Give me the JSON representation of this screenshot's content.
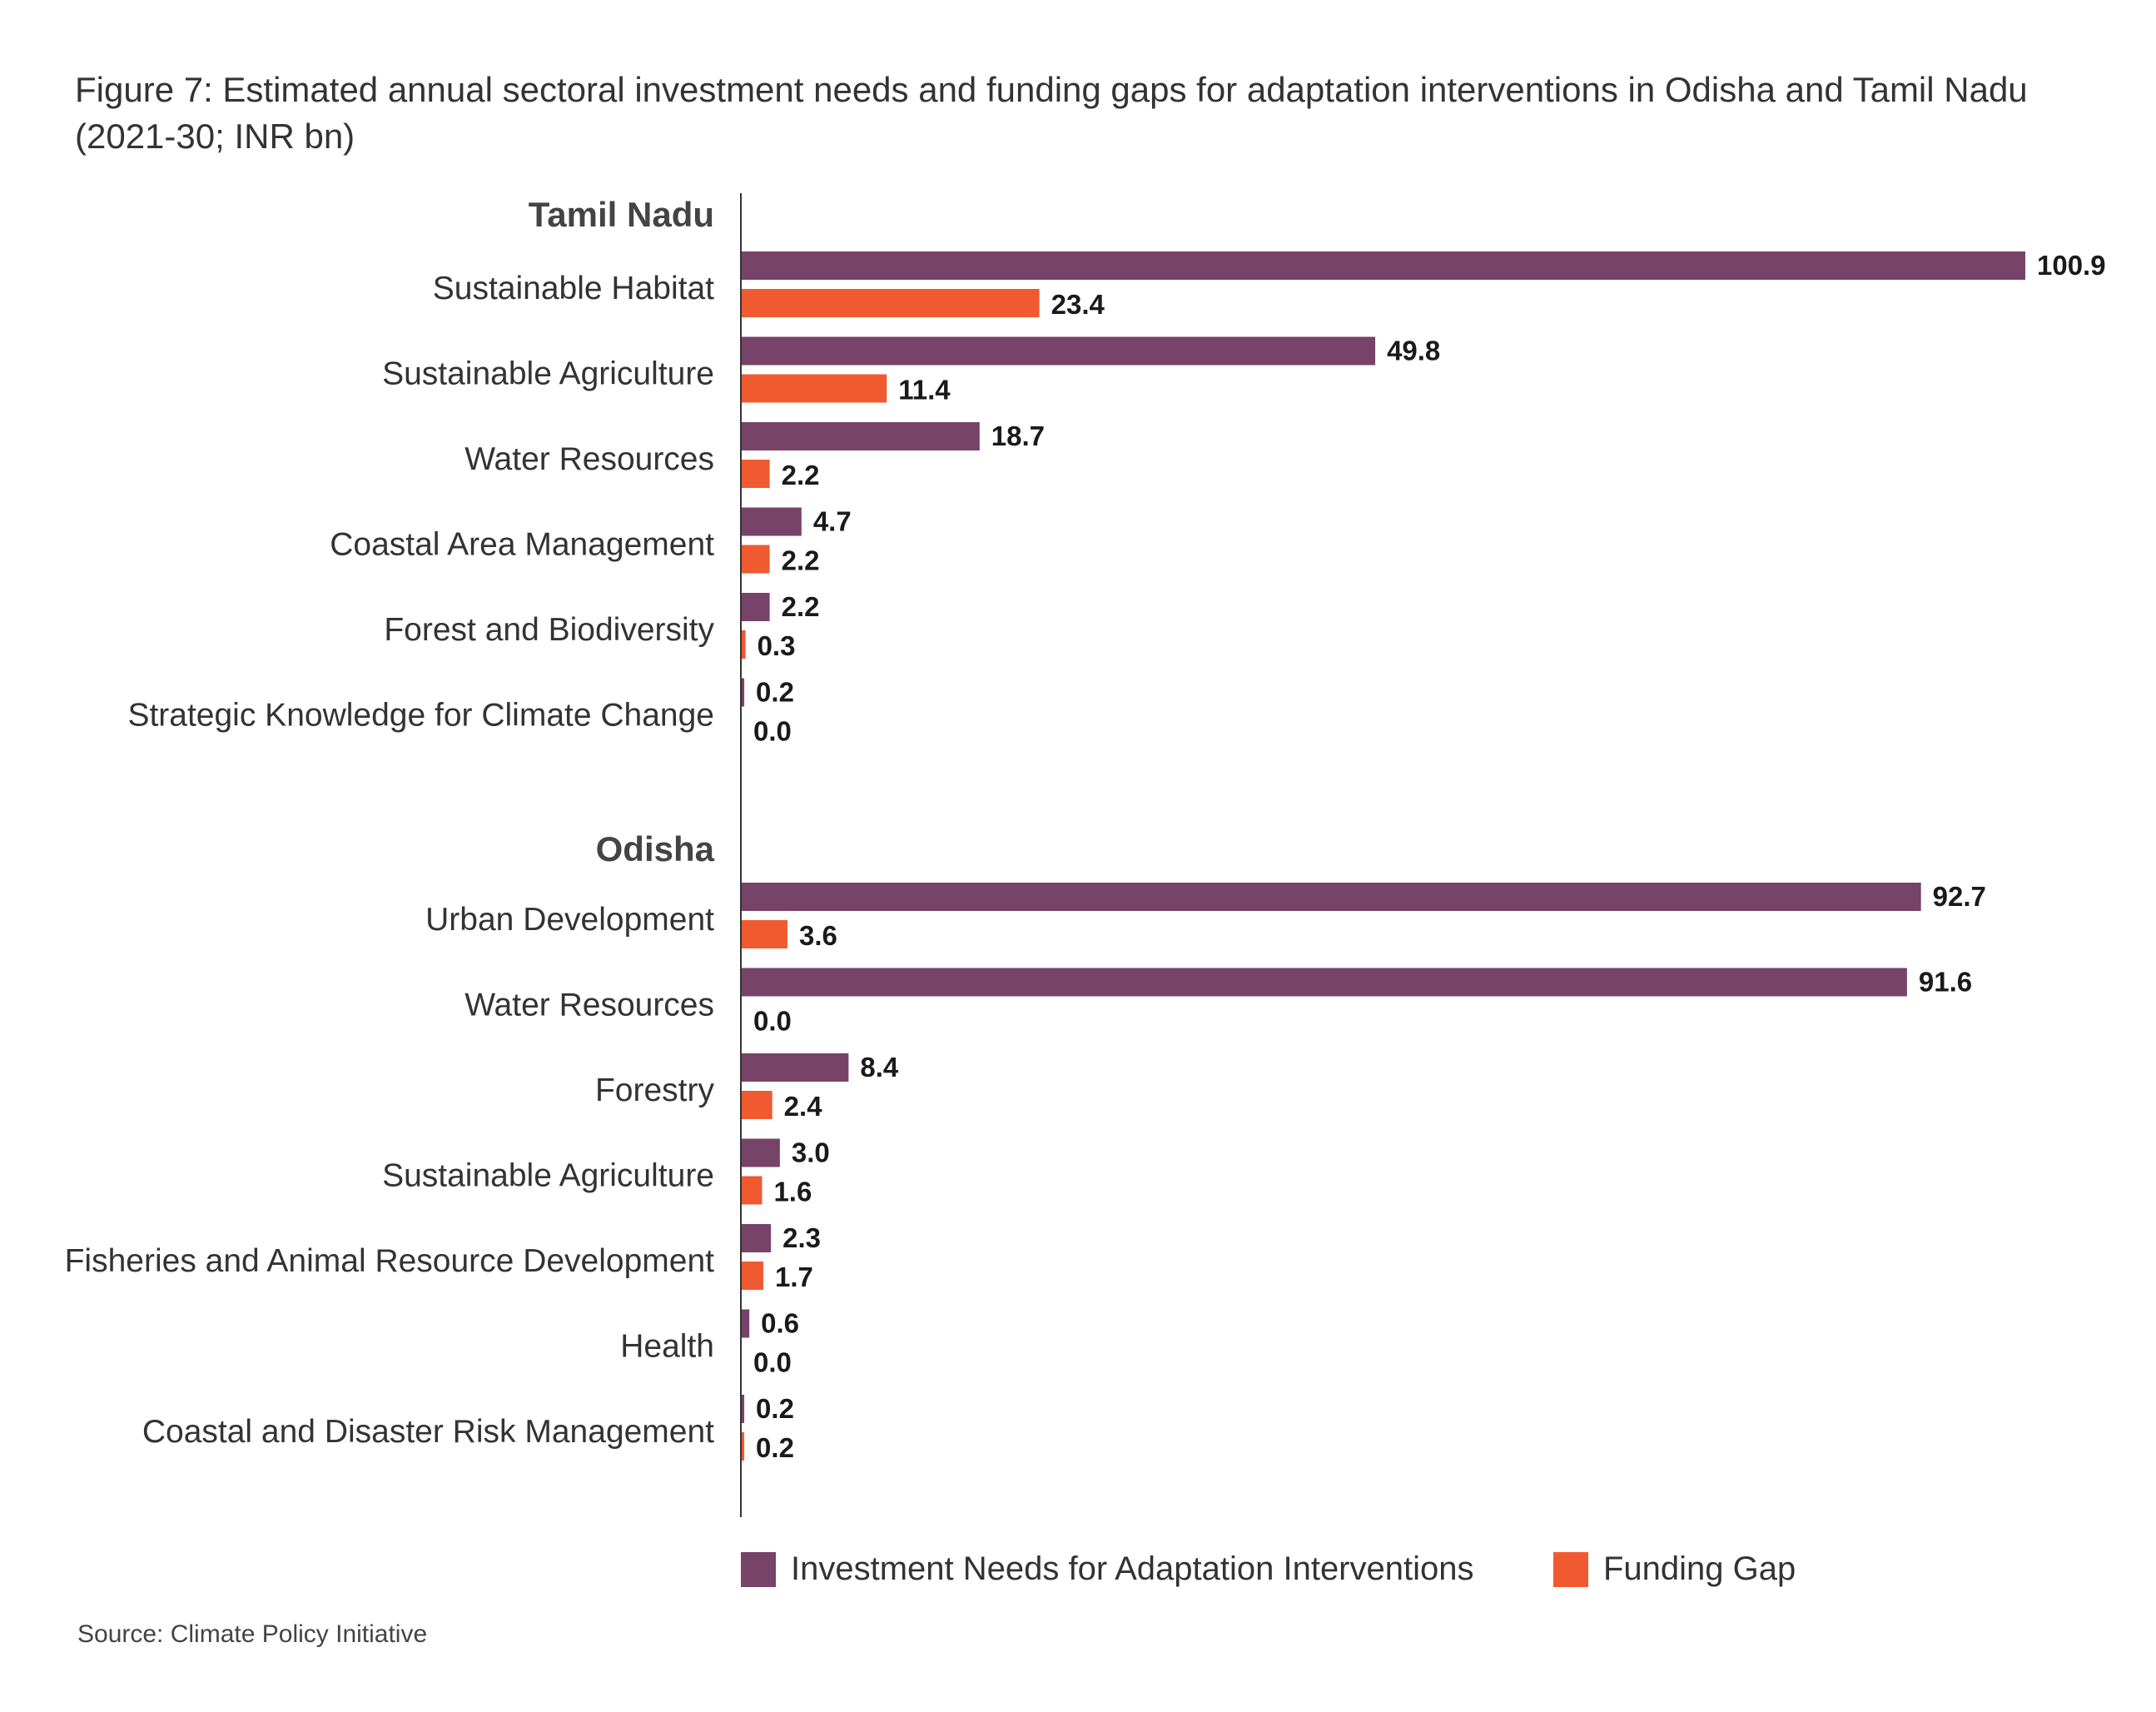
{
  "title": "Figure 7: Estimated annual sectoral investment needs and funding gaps for adaptation interventions in Odisha and Tamil Nadu (2021-30; INR bn)",
  "source": "Source: Climate Policy Initiative",
  "colors": {
    "investment": "#774368",
    "gap": "#F05A31",
    "axis": "#333333",
    "text": "#333333"
  },
  "chart_data": {
    "type": "bar",
    "orientation": "horizontal",
    "title": "Figure 7: Estimated annual sectoral investment needs and funding gaps for adaptation interventions in Odisha and Tamil Nadu (2021-30; INR bn)",
    "xlim": [
      0,
      100.9
    ],
    "grid": false,
    "legend_placement": "bottom",
    "series_names": [
      "Investment Needs for Adaptation Interventions",
      "Funding Gap"
    ],
    "groups": [
      {
        "name": "Tamil Nadu",
        "categories": [
          "Sustainable Habitat",
          "Sustainable Agriculture",
          "Water Resources",
          "Coastal Area Management",
          "Forest and Biodiversity",
          "Strategic Knowledge for Climate Change"
        ],
        "investment_labels": [
          "100.9",
          "49.8",
          "18.7",
          "4.7",
          "2.2",
          "0.2"
        ],
        "gap_labels": [
          "23.4",
          "11.4",
          "2.2",
          "2.2",
          "0.3",
          "0.0"
        ]
      },
      {
        "name": "Odisha",
        "categories": [
          "Urban Development",
          "Water Resources",
          "Forestry",
          "Sustainable Agriculture",
          "Fisheries and Animal Resource Development",
          "Health",
          "Coastal and Disaster Risk Management"
        ],
        "investment_labels": [
          "92.7",
          "91.6",
          "8.4",
          "3.0",
          "2.3",
          "0.6",
          "0.2"
        ],
        "gap_labels": [
          "3.6",
          "0.0",
          "2.4",
          "1.6",
          "1.7",
          "0.0",
          "0.2"
        ]
      }
    ]
  }
}
